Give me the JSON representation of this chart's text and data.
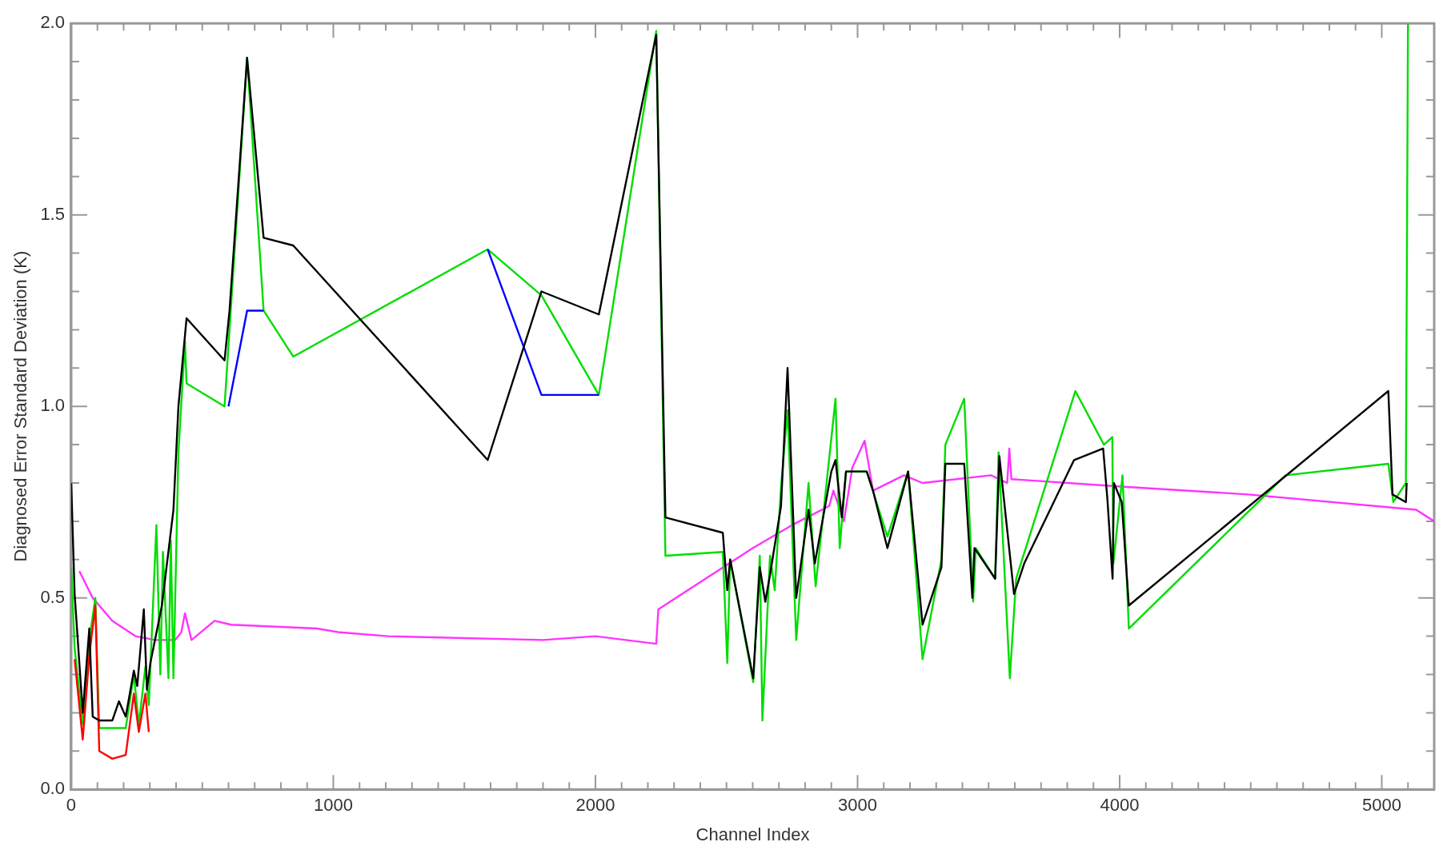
{
  "chart_data": {
    "type": "line",
    "xlabel": "Channel Index",
    "ylabel": "Diagnosed Error Standard Deviation (K)",
    "xlim": [
      0,
      5200
    ],
    "ylim": [
      0,
      2
    ],
    "xticks": [
      0,
      {
        "value": 100,
        "label": null
      },
      {
        "value": 200,
        "label": null
      },
      {
        "value": 300,
        "label": null
      },
      {
        "value": 400,
        "label": null
      },
      {
        "value": 500,
        "label": null
      },
      {
        "value": 600,
        "label": null
      },
      {
        "value": 700,
        "label": null
      },
      {
        "value": 800,
        "label": null
      },
      {
        "value": 900,
        "label": null
      },
      1000,
      {
        "value": 1100,
        "label": null
      },
      {
        "value": 1200,
        "label": null
      },
      {
        "value": 1300,
        "label": null
      },
      {
        "value": 1400,
        "label": null
      },
      {
        "value": 1500,
        "label": null
      },
      {
        "value": 1600,
        "label": null
      },
      {
        "value": 1700,
        "label": null
      },
      {
        "value": 1800,
        "label": null
      },
      {
        "value": 1900,
        "label": null
      },
      2000,
      {
        "value": 2100,
        "label": null
      },
      {
        "value": 2200,
        "label": null
      },
      {
        "value": 2300,
        "label": null
      },
      {
        "value": 2400,
        "label": null
      },
      {
        "value": 2500,
        "label": null
      },
      {
        "value": 2600,
        "label": null
      },
      {
        "value": 2700,
        "label": null
      },
      {
        "value": 2800,
        "label": null
      },
      {
        "value": 2900,
        "label": null
      },
      3000,
      {
        "value": 3100,
        "label": null
      },
      {
        "value": 3200,
        "label": null
      },
      {
        "value": 3300,
        "label": null
      },
      {
        "value": 3400,
        "label": null
      },
      {
        "value": 3500,
        "label": null
      },
      {
        "value": 3600,
        "label": null
      },
      {
        "value": 3700,
        "label": null
      },
      {
        "value": 3800,
        "label": null
      },
      {
        "value": 3900,
        "label": null
      },
      4000,
      {
        "value": 4100,
        "label": null
      },
      {
        "value": 4200,
        "label": null
      },
      {
        "value": 4300,
        "label": null
      },
      {
        "value": 4400,
        "label": null
      },
      {
        "value": 4500,
        "label": null
      },
      {
        "value": 4600,
        "label": null
      },
      {
        "value": 4700,
        "label": null
      },
      {
        "value": 4800,
        "label": null
      },
      {
        "value": 4900,
        "label": null
      },
      5000,
      {
        "value": 5100,
        "label": null
      }
    ],
    "yticks": [
      {
        "value": 0,
        "label": "0.0"
      },
      {
        "value": 0.1,
        "label": null
      },
      {
        "value": 0.2,
        "label": null
      },
      {
        "value": 0.3,
        "label": null
      },
      {
        "value": 0.4,
        "label": null
      },
      0.5,
      {
        "value": 0.6,
        "label": null
      },
      {
        "value": 0.7,
        "label": null
      },
      {
        "value": 0.8,
        "label": null
      },
      {
        "value": 0.9,
        "label": null
      },
      {
        "value": 1,
        "label": "1.0"
      },
      {
        "value": 1.1,
        "label": null
      },
      {
        "value": 1.2,
        "label": null
      },
      {
        "value": 1.3,
        "label": null
      },
      {
        "value": 1.4,
        "label": null
      },
      1.5,
      {
        "value": 1.6,
        "label": null
      },
      {
        "value": 1.7,
        "label": null
      },
      {
        "value": 1.8,
        "label": null
      },
      {
        "value": 1.9,
        "label": null
      },
      {
        "value": 2,
        "label": "2.0"
      }
    ],
    "legend": false,
    "marker": "none",
    "line_style": "solid",
    "series": [
      {
        "color": "#000000",
        "x": [
          0,
          13,
          44,
          69,
          82,
          107,
          157,
          182,
          208,
          239,
          252,
          277,
          289,
          302,
          346,
          390,
          409,
          440,
          585,
          604,
          671,
          734,
          847,
          1589,
          1794,
          2013,
          2232,
          2267,
          2486,
          2503,
          2514,
          2602,
          2627,
          2648,
          2666,
          2708,
          2733,
          2766,
          2813,
          2837,
          2900,
          2916,
          2940,
          2956,
          3035,
          3059,
          3114,
          3193,
          3248,
          3320,
          3335,
          3407,
          3438,
          3446,
          3525,
          3541,
          3597,
          3636,
          3826,
          3937,
          3953,
          3973,
          3978,
          4008,
          4035,
          5025,
          5041,
          5092,
          5095
        ],
        "values": [
          0.8,
          0.51,
          0.2,
          0.42,
          0.19,
          0.18,
          0.18,
          0.23,
          0.19,
          0.31,
          0.27,
          0.47,
          0.26,
          0.33,
          0.48,
          0.73,
          1.0,
          1.23,
          1.12,
          1.25,
          1.91,
          1.44,
          1.42,
          0.86,
          1.3,
          1.24,
          1.97,
          0.71,
          0.67,
          0.52,
          0.6,
          0.29,
          0.58,
          0.49,
          0.56,
          0.74,
          1.1,
          0.5,
          0.73,
          0.59,
          0.83,
          0.86,
          0.71,
          0.83,
          0.83,
          0.78,
          0.63,
          0.83,
          0.43,
          0.58,
          0.85,
          0.85,
          0.5,
          0.63,
          0.55,
          0.87,
          0.51,
          0.59,
          0.86,
          0.89,
          0.76,
          0.55,
          0.8,
          0.75,
          0.48,
          1.04,
          0.77,
          0.75,
          0.8
        ]
      },
      {
        "color": "#ff0000",
        "x": [
          13,
          44,
          69,
          92,
          107,
          157,
          208,
          239,
          258,
          283,
          296
        ],
        "values": [
          0.34,
          0.13,
          0.35,
          0.48,
          0.1,
          0.08,
          0.09,
          0.25,
          0.15,
          0.25,
          0.15
        ]
      },
      {
        "color": "#0000ff",
        "x": [
          600,
          671,
          734,
          1160,
          1589,
          1794,
          2013
        ],
        "values": [
          1.0,
          1.25,
          1.25,
          null,
          1.41,
          1.03,
          1.03
        ]
      },
      {
        "color": "#00dd00",
        "x": [
          0,
          13,
          44,
          69,
          92,
          107,
          157,
          208,
          239,
          258,
          283,
          296,
          325,
          340,
          350,
          371,
          380,
          390,
          409,
          434,
          440,
          585,
          671,
          734,
          847,
          1589,
          1794,
          2013,
          2232,
          2267,
          2486,
          2503,
          2514,
          2602,
          2627,
          2637,
          2666,
          2684,
          2708,
          2733,
          2766,
          2813,
          2840,
          2916,
          2932,
          2956,
          3035,
          3114,
          3193,
          3248,
          3320,
          3335,
          3407,
          3441,
          3451,
          3525,
          3538,
          3581,
          3605,
          3831,
          3940,
          3972,
          3976,
          4011,
          4035,
          4633,
          5025,
          5044,
          5092,
          5100
        ],
        "values": [
          0.58,
          0.37,
          0.17,
          0.39,
          0.5,
          0.16,
          0.16,
          0.16,
          0.3,
          0.17,
          0.32,
          0.22,
          0.69,
          0.3,
          0.62,
          0.29,
          0.65,
          0.29,
          0.88,
          1.17,
          1.06,
          1.0,
          1.91,
          1.25,
          1.13,
          1.41,
          1.29,
          1.03,
          1.98,
          0.61,
          0.62,
          0.33,
          0.6,
          0.28,
          0.61,
          0.18,
          0.61,
          0.52,
          0.79,
          0.99,
          0.39,
          0.8,
          0.53,
          1.02,
          0.63,
          0.83,
          0.83,
          0.66,
          0.83,
          0.34,
          0.6,
          0.9,
          1.02,
          0.49,
          0.63,
          0.55,
          0.88,
          0.29,
          0.55,
          1.04,
          0.9,
          0.92,
          0.59,
          0.82,
          0.42,
          0.82,
          0.85,
          0.75,
          0.8,
          2.0
        ]
      },
      {
        "color": "#ff33ff",
        "x": [
          31,
          82,
          157,
          245,
          321,
          396,
          420,
          434,
          459,
          547,
          610,
          937,
          1025,
          1208,
          1800,
          2000,
          2232,
          2240,
          2600,
          2750,
          2892,
          2908,
          2948,
          2980,
          3027,
          3059,
          3177,
          3248,
          3509,
          3571,
          3579,
          3587,
          4016,
          4491,
          5131,
          5200
        ],
        "values": [
          0.57,
          0.5,
          0.44,
          0.4,
          0.39,
          0.39,
          0.41,
          0.46,
          0.39,
          0.44,
          0.43,
          0.42,
          0.41,
          0.4,
          0.39,
          0.4,
          0.38,
          0.47,
          0.63,
          0.69,
          0.74,
          0.78,
          0.7,
          0.84,
          0.91,
          0.78,
          0.82,
          0.8,
          0.82,
          0.8,
          0.89,
          0.81,
          0.79,
          0.77,
          0.73,
          0.7
        ]
      }
    ]
  }
}
